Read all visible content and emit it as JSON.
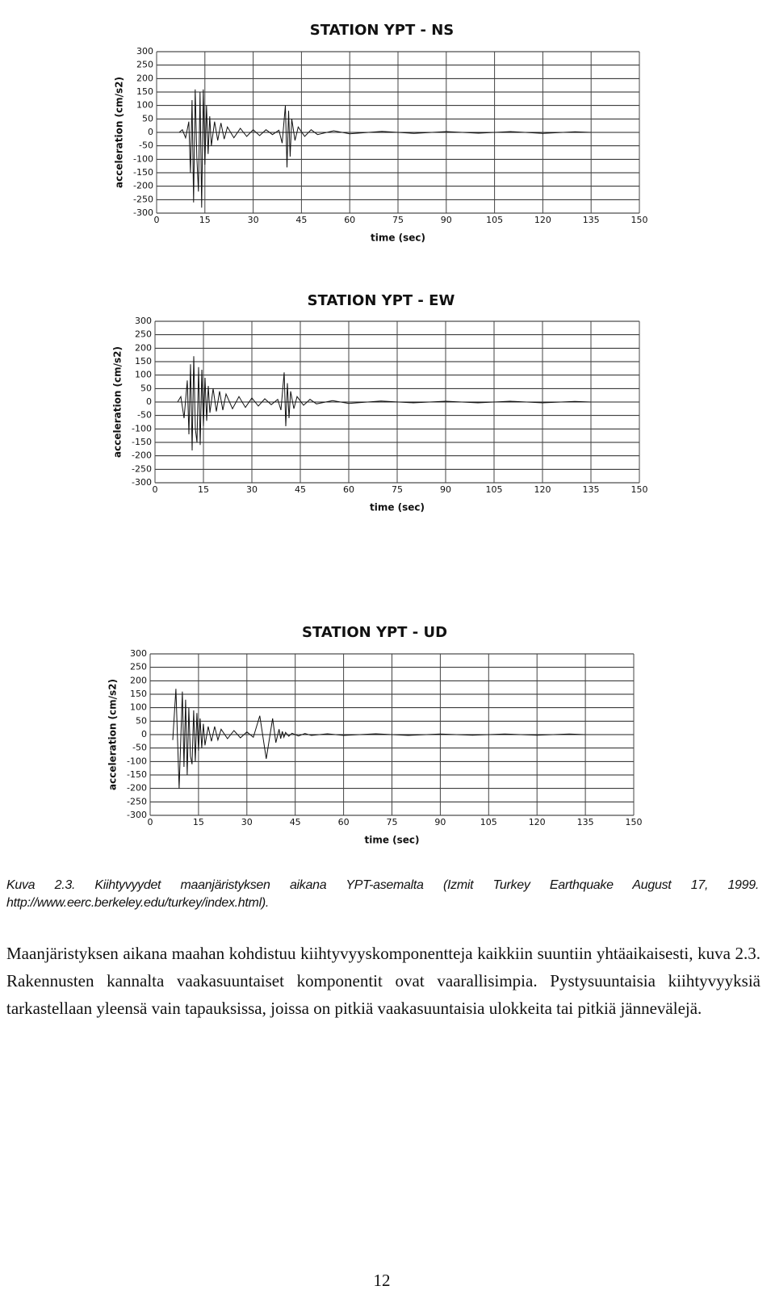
{
  "chart_data": [
    {
      "type": "line",
      "title": "STATION YPT - NS",
      "x_label": "time (sec)",
      "y_label": "acceleration (cm/s2)",
      "x": [
        7,
        8,
        9,
        10,
        10.5,
        11,
        11.5,
        12,
        12.5,
        13,
        13.5,
        14,
        14.5,
        15,
        15.5,
        16,
        16.5,
        17,
        18,
        19,
        20,
        21,
        22,
        24,
        26,
        28,
        30,
        32,
        34,
        36,
        38,
        39,
        40,
        40.5,
        41,
        41.5,
        42,
        43,
        44,
        46,
        48,
        50,
        55,
        60,
        70,
        80,
        90,
        100,
        110,
        120,
        130,
        135
      ],
      "values": [
        0,
        10,
        -20,
        40,
        -150,
        120,
        -260,
        160,
        -90,
        -220,
        150,
        -280,
        160,
        -120,
        100,
        -80,
        60,
        -50,
        40,
        -30,
        35,
        -25,
        20,
        -20,
        15,
        -15,
        10,
        -12,
        10,
        -8,
        8,
        -40,
        100,
        -130,
        80,
        -90,
        50,
        -30,
        20,
        -15,
        10,
        -8,
        6,
        -5,
        4,
        -4,
        3,
        -3,
        3,
        -4,
        2,
        0
      ],
      "color": "#111111",
      "xlim": [
        0,
        150
      ],
      "ylim": [
        -300,
        300
      ],
      "xticks": [
        0,
        15,
        30,
        45,
        60,
        75,
        90,
        105,
        120,
        135,
        150
      ],
      "yticks": [
        -300,
        -250,
        -200,
        -150,
        -100,
        -50,
        0,
        50,
        100,
        150,
        200,
        250,
        300
      ],
      "grid": true
    },
    {
      "type": "line",
      "title": "STATION YPT - EW",
      "x_label": "time (sec)",
      "y_label": "acceleration (cm/s2)",
      "x": [
        7,
        8,
        9,
        10,
        10.5,
        11,
        11.5,
        12,
        12.5,
        13,
        13.5,
        14,
        14.5,
        15,
        15.5,
        16,
        16.5,
        17,
        18,
        19,
        20,
        21,
        22,
        24,
        26,
        28,
        30,
        32,
        34,
        36,
        38,
        39,
        40,
        40.5,
        41,
        41.5,
        42,
        43,
        44,
        46,
        48,
        50,
        55,
        60,
        70,
        80,
        90,
        100,
        110,
        120,
        130,
        135
      ],
      "values": [
        0,
        20,
        -60,
        80,
        -120,
        140,
        -180,
        170,
        -100,
        -150,
        130,
        -160,
        120,
        -90,
        90,
        -70,
        60,
        -40,
        50,
        -35,
        40,
        -30,
        30,
        -25,
        20,
        -20,
        15,
        -15,
        12,
        -10,
        10,
        -30,
        110,
        -90,
        70,
        -60,
        40,
        -25,
        20,
        -12,
        10,
        -7,
        5,
        -5,
        4,
        -3,
        3,
        -3,
        3,
        -3,
        2,
        0
      ],
      "color": "#111111",
      "xlim": [
        0,
        150
      ],
      "ylim": [
        -300,
        300
      ],
      "xticks": [
        0,
        15,
        30,
        45,
        60,
        75,
        90,
        105,
        120,
        135,
        150
      ],
      "yticks": [
        -300,
        -250,
        -200,
        -150,
        -100,
        -50,
        0,
        50,
        100,
        150,
        200,
        250,
        300
      ],
      "grid": true
    },
    {
      "type": "line",
      "title": "STATION YPT - UD",
      "x_label": "time (sec)",
      "y_label": "acceleration (cm/s2)",
      "x": [
        7,
        8,
        9,
        10,
        10.5,
        11,
        11.5,
        12,
        12.5,
        13,
        13.5,
        14,
        14.5,
        15,
        15.5,
        16,
        16.5,
        17,
        18,
        19,
        20,
        21,
        22,
        24,
        26,
        28,
        30,
        32,
        34,
        36,
        38,
        39,
        40,
        40.5,
        41,
        41.5,
        42,
        43,
        44,
        46,
        48,
        50,
        55,
        60,
        70,
        80,
        90,
        100,
        110,
        120,
        130,
        135
      ],
      "values": [
        -20,
        170,
        -200,
        160,
        -120,
        130,
        -150,
        100,
        -80,
        -110,
        90,
        -100,
        80,
        -60,
        60,
        -50,
        40,
        -40,
        30,
        -25,
        30,
        -20,
        20,
        -15,
        15,
        -12,
        10,
        -10,
        70,
        -90,
        60,
        -30,
        20,
        -15,
        12,
        -10,
        8,
        -6,
        5,
        -5,
        4,
        -3,
        3,
        -3,
        3,
        -3,
        2,
        -2,
        2,
        -2,
        2,
        0
      ],
      "color": "#111111",
      "xlim": [
        0,
        150
      ],
      "ylim": [
        -300,
        300
      ],
      "xticks": [
        0,
        15,
        30,
        45,
        60,
        75,
        90,
        105,
        120,
        135,
        150
      ],
      "yticks": [
        -300,
        -250,
        -200,
        -150,
        -100,
        -50,
        0,
        50,
        100,
        150,
        200,
        250,
        300
      ],
      "grid": true
    }
  ],
  "caption": "Kuva 2.3. Kiihtyvyydet maanjäristyksen aikana YPT-asemalta (Izmit Turkey Earthquake August 17, 1999. http://www.eerc.berkeley.edu/turkey/index.html).",
  "paragraph": "Maanjäristyksen aikana maahan kohdistuu kiihtyvyyskomponentteja kaikkiin suuntiin yhtäaikaisesti, kuva 2.3. Rakennusten kannalta vaakasuuntaiset komponentit ovat vaarallisimpia. Pystysuuntaisia kiihtyvyyksiä tarkastellaan yleensä vain tapauksissa, joissa on pitkiä vaakasuuntaisia ulokkeita tai pitkiä jännevälejä.",
  "page_number": "12"
}
